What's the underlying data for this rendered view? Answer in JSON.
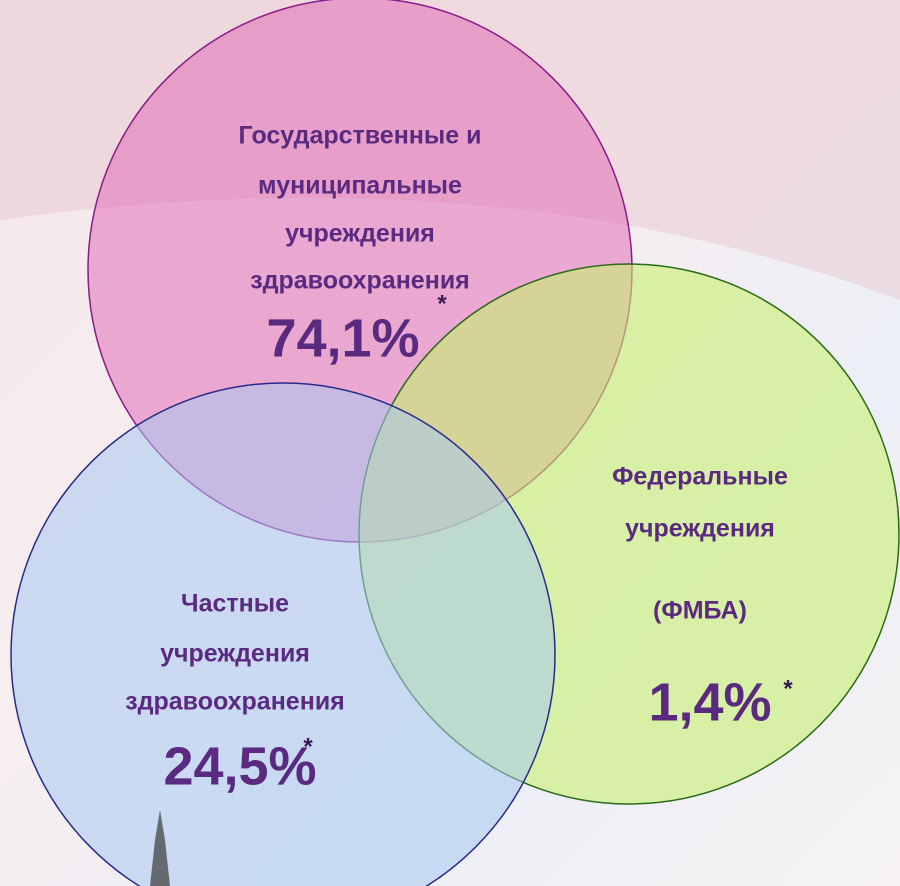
{
  "nodes": [
    {
      "label": [
        "Государственные и",
        "муниципальные",
        "учреждения",
        "здравоохранения"
      ],
      "value": "74,1%",
      "note": "*"
    },
    {
      "label": [
        "Федеральные",
        "учреждения",
        "(ФМБА)"
      ],
      "value": "1,4%",
      "note": "*"
    },
    {
      "label": [
        "Частные",
        "учреждения",
        "здравоохранения"
      ],
      "value": "24,5%",
      "note": "*"
    }
  ]
}
